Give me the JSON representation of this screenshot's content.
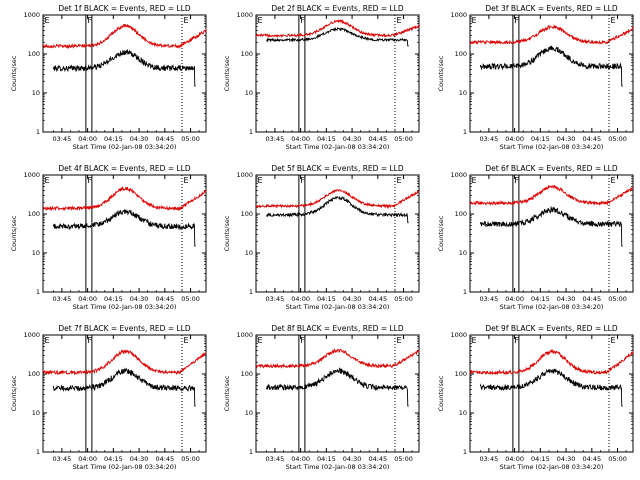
{
  "figure": {
    "colors": {
      "events": "#000000",
      "lld": "#dd0000",
      "axes": "#000000",
      "background": "#ffffff"
    }
  },
  "chart_data": [
    {
      "type": "line",
      "title": "Det 1f BLACK = Events, RED = LLD",
      "xlabel": "Start Time (02-Jan-08 03:34:20)",
      "ylabel": "Counts/sec",
      "y_scale": "log",
      "ylim": [
        1,
        1000
      ],
      "y_ticks": [
        "1",
        "10",
        "100",
        "1000"
      ],
      "x_ticks": [
        "03:45",
        "04:00",
        "04:15",
        "04:30",
        "04:45",
        "05:00"
      ],
      "x_tick_minutes": [
        11,
        26,
        41,
        56,
        71,
        86
      ],
      "xlim_minutes": [
        0,
        95
      ],
      "markers": [
        {
          "label": "E",
          "minute": 0,
          "style": "solid"
        },
        {
          "label": "F",
          "minute": 25,
          "style": "solid"
        },
        {
          "label": "E",
          "minute": 81,
          "style": "dotted"
        }
      ],
      "solid_lines_minutes": [
        25,
        28.5
      ],
      "series": [
        {
          "name": "Events",
          "color": "#000000",
          "start": 6,
          "end": 89,
          "low": 43,
          "peak": 110,
          "drop": 15,
          "wiggle": 0.07,
          "mid": 48,
          "width": 11
        },
        {
          "name": "LLD",
          "color": "#dd0000",
          "start": 0,
          "end": 95,
          "low": 160,
          "peak": 520,
          "rise": 400,
          "wiggle": 0.04,
          "mid": 48,
          "width": 11
        }
      ]
    },
    {
      "type": "line",
      "title": "Det 2f BLACK = Events, RED = LLD",
      "xlabel": "Start Time (02-Jan-08 03:34:20)",
      "ylabel": "Counts/sec",
      "y_scale": "log",
      "ylim": [
        1,
        1000
      ],
      "y_ticks": [
        "1",
        "10",
        "100",
        "1000"
      ],
      "x_ticks": [
        "03:45",
        "04:00",
        "04:15",
        "04:30",
        "04:45",
        "05:00"
      ],
      "x_tick_minutes": [
        11,
        26,
        41,
        56,
        71,
        86
      ],
      "xlim_minutes": [
        0,
        95
      ],
      "markers": [
        {
          "label": "E",
          "minute": 0,
          "style": "solid"
        },
        {
          "label": "F",
          "minute": 25,
          "style": "solid"
        },
        {
          "label": "E",
          "minute": 81,
          "style": "dotted"
        }
      ],
      "solid_lines_minutes": [
        25,
        28.5
      ],
      "series": [
        {
          "name": "Events",
          "color": "#000000",
          "start": 6,
          "end": 89,
          "low": 230,
          "peak": 440,
          "drop": 160,
          "wiggle": 0.03,
          "mid": 48,
          "width": 11
        },
        {
          "name": "LLD",
          "color": "#dd0000",
          "start": 0,
          "end": 95,
          "low": 300,
          "peak": 700,
          "rise": 520,
          "wiggle": 0.03,
          "mid": 48,
          "width": 11
        }
      ]
    },
    {
      "type": "line",
      "title": "Det 3f BLACK = Events, RED = LLD",
      "xlabel": "Start Time (02-Jan-08 03:34:20)",
      "ylabel": "Counts/sec",
      "y_scale": "log",
      "ylim": [
        1,
        1000
      ],
      "y_ticks": [
        "1",
        "10",
        "100",
        "1000"
      ],
      "x_ticks": [
        "03:45",
        "04:00",
        "04:15",
        "04:30",
        "04:45",
        "05:00"
      ],
      "x_tick_minutes": [
        11,
        26,
        41,
        56,
        71,
        86
      ],
      "xlim_minutes": [
        0,
        95
      ],
      "markers": [
        {
          "label": "E",
          "minute": 0,
          "style": "solid"
        },
        {
          "label": "F",
          "minute": 25,
          "style": "solid"
        },
        {
          "label": "E",
          "minute": 81,
          "style": "dotted"
        }
      ],
      "solid_lines_minutes": [
        25,
        28.5
      ],
      "series": [
        {
          "name": "Events",
          "color": "#000000",
          "start": 6,
          "end": 89,
          "low": 48,
          "peak": 140,
          "drop": 15,
          "wiggle": 0.07,
          "mid": 48,
          "width": 11
        },
        {
          "name": "LLD",
          "color": "#dd0000",
          "start": 0,
          "end": 95,
          "low": 200,
          "peak": 500,
          "rise": 450,
          "wiggle": 0.04,
          "mid": 48,
          "width": 11
        }
      ]
    },
    {
      "type": "line",
      "title": "Det 4f BLACK = Events, RED = LLD",
      "xlabel": "Start Time (02-Jan-08 03:34:20)",
      "ylabel": "Counts/sec",
      "y_scale": "log",
      "ylim": [
        1,
        1000
      ],
      "y_ticks": [
        "1",
        "10",
        "100",
        "1000"
      ],
      "x_ticks": [
        "03:45",
        "04:00",
        "04:15",
        "04:30",
        "04:45",
        "05:00"
      ],
      "x_tick_minutes": [
        11,
        26,
        41,
        56,
        71,
        86
      ],
      "xlim_minutes": [
        0,
        95
      ],
      "markers": [
        {
          "label": "E",
          "minute": 0,
          "style": "solid"
        },
        {
          "label": "F",
          "minute": 25,
          "style": "solid"
        },
        {
          "label": "E",
          "minute": 81,
          "style": "dotted"
        }
      ],
      "solid_lines_minutes": [
        25,
        28.5
      ],
      "series": [
        {
          "name": "Events",
          "color": "#000000",
          "start": 6,
          "end": 89,
          "low": 48,
          "peak": 115,
          "drop": 15,
          "wiggle": 0.07,
          "mid": 48,
          "width": 11
        },
        {
          "name": "LLD",
          "color": "#dd0000",
          "start": 0,
          "end": 95,
          "low": 140,
          "peak": 450,
          "rise": 380,
          "wiggle": 0.04,
          "mid": 48,
          "width": 11
        }
      ]
    },
    {
      "type": "line",
      "title": "Det 5f BLACK = Events, RED = LLD",
      "xlabel": "Start Time (02-Jan-08 03:34:20)",
      "ylabel": "Counts/sec",
      "y_scale": "log",
      "ylim": [
        1,
        1000
      ],
      "y_ticks": [
        "1",
        "10",
        "100",
        "1000"
      ],
      "x_ticks": [
        "03:45",
        "04:00",
        "04:15",
        "04:30",
        "04:45",
        "05:00"
      ],
      "x_tick_minutes": [
        11,
        26,
        41,
        56,
        71,
        86
      ],
      "xlim_minutes": [
        0,
        95
      ],
      "markers": [
        {
          "label": "E",
          "minute": 0,
          "style": "solid"
        },
        {
          "label": "F",
          "minute": 25,
          "style": "solid"
        },
        {
          "label": "E",
          "minute": 81,
          "style": "dotted"
        }
      ],
      "solid_lines_minutes": [
        25,
        28.5
      ],
      "series": [
        {
          "name": "Events",
          "color": "#000000",
          "start": 6,
          "end": 89,
          "low": 95,
          "peak": 260,
          "drop": 60,
          "wiggle": 0.04,
          "mid": 48,
          "width": 11
        },
        {
          "name": "LLD",
          "color": "#dd0000",
          "start": 0,
          "end": 95,
          "low": 160,
          "peak": 400,
          "rise": 380,
          "wiggle": 0.03,
          "mid": 48,
          "width": 11
        }
      ]
    },
    {
      "type": "line",
      "title": "Det 6f BLACK = Events, RED = LLD",
      "xlabel": "Start Time (02-Jan-08 03:34:20)",
      "ylabel": "Counts/sec",
      "y_scale": "log",
      "ylim": [
        1,
        1000
      ],
      "y_ticks": [
        "1",
        "10",
        "100",
        "1000"
      ],
      "x_ticks": [
        "03:45",
        "04:00",
        "04:15",
        "04:30",
        "04:45",
        "05:00"
      ],
      "x_tick_minutes": [
        11,
        26,
        41,
        56,
        71,
        86
      ],
      "xlim_minutes": [
        0,
        95
      ],
      "markers": [
        {
          "label": "E",
          "minute": 0,
          "style": "solid"
        },
        {
          "label": "F",
          "minute": 25,
          "style": "solid"
        },
        {
          "label": "E",
          "minute": 81,
          "style": "dotted"
        }
      ],
      "solid_lines_minutes": [
        25,
        28.5
      ],
      "series": [
        {
          "name": "Events",
          "color": "#000000",
          "start": 6,
          "end": 89,
          "low": 55,
          "peak": 130,
          "drop": 15,
          "wiggle": 0.07,
          "mid": 48,
          "width": 11
        },
        {
          "name": "LLD",
          "color": "#dd0000",
          "start": 0,
          "end": 95,
          "low": 190,
          "peak": 500,
          "rise": 450,
          "wiggle": 0.04,
          "mid": 48,
          "width": 11
        }
      ]
    },
    {
      "type": "line",
      "title": "Det 7f BLACK = Events, RED = LLD",
      "xlabel": "Start Time (02-Jan-08 03:34:20)",
      "ylabel": "Counts/sec",
      "y_scale": "log",
      "ylim": [
        1,
        1000
      ],
      "y_ticks": [
        "1",
        "10",
        "100",
        "1000"
      ],
      "x_ticks": [
        "03:45",
        "04:00",
        "04:15",
        "04:30",
        "04:45",
        "05:00"
      ],
      "x_tick_minutes": [
        11,
        26,
        41,
        56,
        71,
        86
      ],
      "xlim_minutes": [
        0,
        95
      ],
      "markers": [
        {
          "label": "E",
          "minute": 0,
          "style": "solid"
        },
        {
          "label": "F",
          "minute": 25,
          "style": "solid"
        },
        {
          "label": "E",
          "minute": 81,
          "style": "dotted"
        }
      ],
      "solid_lines_minutes": [
        25,
        28.5
      ],
      "series": [
        {
          "name": "Events",
          "color": "#000000",
          "start": 6,
          "end": 89,
          "low": 43,
          "peak": 120,
          "drop": 15,
          "wiggle": 0.07,
          "mid": 48,
          "width": 11
        },
        {
          "name": "LLD",
          "color": "#dd0000",
          "start": 0,
          "end": 95,
          "low": 110,
          "peak": 380,
          "rise": 350,
          "wiggle": 0.04,
          "mid": 48,
          "width": 11
        }
      ]
    },
    {
      "type": "line",
      "title": "Det 8f BLACK = Events, RED = LLD",
      "xlabel": "Start Time (02-Jan-08 03:34:20)",
      "ylabel": "Counts/sec",
      "y_scale": "log",
      "ylim": [
        1,
        1000
      ],
      "y_ticks": [
        "1",
        "10",
        "100",
        "1000"
      ],
      "x_ticks": [
        "03:45",
        "04:00",
        "04:15",
        "04:30",
        "04:45",
        "05:00"
      ],
      "x_tick_minutes": [
        11,
        26,
        41,
        56,
        71,
        86
      ],
      "xlim_minutes": [
        0,
        95
      ],
      "markers": [
        {
          "label": "E",
          "minute": 0,
          "style": "solid"
        },
        {
          "label": "F",
          "minute": 25,
          "style": "solid"
        },
        {
          "label": "E",
          "minute": 81,
          "style": "dotted"
        }
      ],
      "solid_lines_minutes": [
        25,
        28.5
      ],
      "series": [
        {
          "name": "Events",
          "color": "#000000",
          "start": 6,
          "end": 89,
          "low": 45,
          "peak": 120,
          "drop": 15,
          "wiggle": 0.07,
          "mid": 48,
          "width": 11
        },
        {
          "name": "LLD",
          "color": "#dd0000",
          "start": 0,
          "end": 95,
          "low": 160,
          "peak": 400,
          "rise": 380,
          "wiggle": 0.04,
          "mid": 48,
          "width": 11
        }
      ]
    },
    {
      "type": "line",
      "title": "Det 9f BLACK = Events, RED = LLD",
      "xlabel": "Start Time (02-Jan-08 03:34:20)",
      "ylabel": "Counts/sec",
      "y_scale": "log",
      "ylim": [
        1,
        1000
      ],
      "y_ticks": [
        "1",
        "10",
        "100",
        "1000"
      ],
      "x_ticks": [
        "03:45",
        "04:00",
        "04:15",
        "04:30",
        "04:45",
        "05:00"
      ],
      "x_tick_minutes": [
        11,
        26,
        41,
        56,
        71,
        86
      ],
      "xlim_minutes": [
        0,
        95
      ],
      "markers": [
        {
          "label": "E",
          "minute": 0,
          "style": "solid"
        },
        {
          "label": "F",
          "minute": 25,
          "style": "solid"
        },
        {
          "label": "E",
          "minute": 81,
          "style": "dotted"
        }
      ],
      "solid_lines_minutes": [
        25,
        28.5
      ],
      "series": [
        {
          "name": "Events",
          "color": "#000000",
          "start": 6,
          "end": 89,
          "low": 45,
          "peak": 120,
          "drop": 15,
          "wiggle": 0.07,
          "mid": 48,
          "width": 11
        },
        {
          "name": "LLD",
          "color": "#dd0000",
          "start": 0,
          "end": 95,
          "low": 110,
          "peak": 380,
          "rise": 360,
          "wiggle": 0.04,
          "mid": 48,
          "width": 11
        }
      ]
    }
  ]
}
